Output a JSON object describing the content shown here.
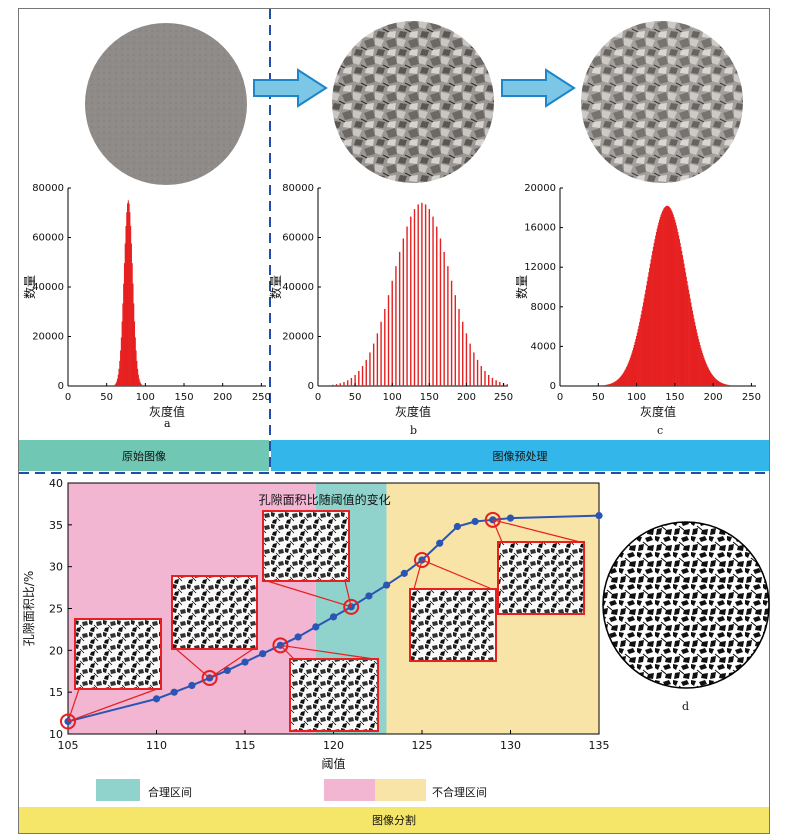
{
  "colors": {
    "red": "#e62020",
    "blue_line": "#2a55b4",
    "band_green": "#6fc7b4",
    "band_blue": "#33b7ea",
    "band_yellow": "#f5e66a",
    "region_pink": "#f2b5d2",
    "region_teal": "#8fd3cc",
    "region_yellow": "#f8e4a6",
    "arrow_fill": "#7cc6e6"
  },
  "labels": {
    "panel_a": "a",
    "panel_b": "b",
    "panel_c": "c",
    "panel_d": "d",
    "band_original": "原始图像",
    "band_preprocess": "图像预处理",
    "band_segmentation": "图像分割",
    "legend_reasonable": "合理区间",
    "legend_unreasonable": "不合理区间"
  },
  "chart_data": [
    {
      "id": "hist-a",
      "type": "bar",
      "xlabel": "灰度值",
      "ylabel": "数量",
      "xlim": [
        0,
        256
      ],
      "ylim": [
        0,
        80000
      ],
      "xticks": [
        0,
        50,
        100,
        150,
        200,
        250
      ],
      "yticks": [
        0,
        20000,
        40000,
        60000,
        80000
      ],
      "peak_x": 78,
      "peak_y": 75000,
      "spread": 5.5
    },
    {
      "id": "hist-b",
      "type": "bar",
      "xlabel": "灰度值",
      "ylabel": "数量",
      "xlim": [
        0,
        256
      ],
      "ylim": [
        0,
        80000
      ],
      "xticks": [
        0,
        50,
        100,
        150,
        200,
        250
      ],
      "yticks": [
        0,
        20000,
        40000,
        60000,
        80000
      ],
      "peak_x": 140,
      "peak_y": 74000,
      "spread": 38,
      "bar_step": 5
    },
    {
      "id": "hist-c",
      "type": "bar",
      "xlabel": "灰度值",
      "ylabel": "数量",
      "xlim": [
        0,
        256
      ],
      "ylim": [
        0,
        20000
      ],
      "xticks": [
        0,
        50,
        100,
        150,
        200,
        250
      ],
      "yticks": [
        0,
        4000,
        8000,
        12000,
        16000,
        20000
      ],
      "peak_x": 140,
      "peak_y": 18200,
      "spread": 25
    },
    {
      "id": "threshold-line",
      "type": "line",
      "title": "孔隙面积比随阈值的变化",
      "xlabel": "阈值",
      "ylabel": "孔隙面积比/%",
      "xlim": [
        105,
        135
      ],
      "ylim": [
        10,
        40
      ],
      "xticks": [
        105,
        110,
        115,
        120,
        125,
        130,
        135
      ],
      "yticks": [
        10,
        15,
        20,
        25,
        30,
        35,
        40
      ],
      "x": [
        105,
        110,
        111,
        112,
        113,
        114,
        115,
        116,
        117,
        118,
        119,
        120,
        121,
        122,
        123,
        124,
        125,
        126,
        127,
        128,
        129,
        130,
        135
      ],
      "y": [
        11.5,
        14.2,
        15.0,
        15.8,
        16.7,
        17.6,
        18.6,
        19.6,
        20.6,
        21.6,
        22.8,
        24.0,
        25.2,
        26.5,
        27.8,
        29.2,
        30.8,
        32.8,
        34.8,
        35.4,
        35.6,
        35.8,
        36.1
      ],
      "highlighted_x": [
        105,
        113,
        117,
        121,
        125,
        129
      ],
      "regions": [
        {
          "from": 105,
          "to": 119,
          "kind": "unreasonable"
        },
        {
          "from": 119,
          "to": 123,
          "kind": "reasonable"
        },
        {
          "from": 123,
          "to": 135,
          "kind": "unreasonable"
        }
      ]
    }
  ]
}
